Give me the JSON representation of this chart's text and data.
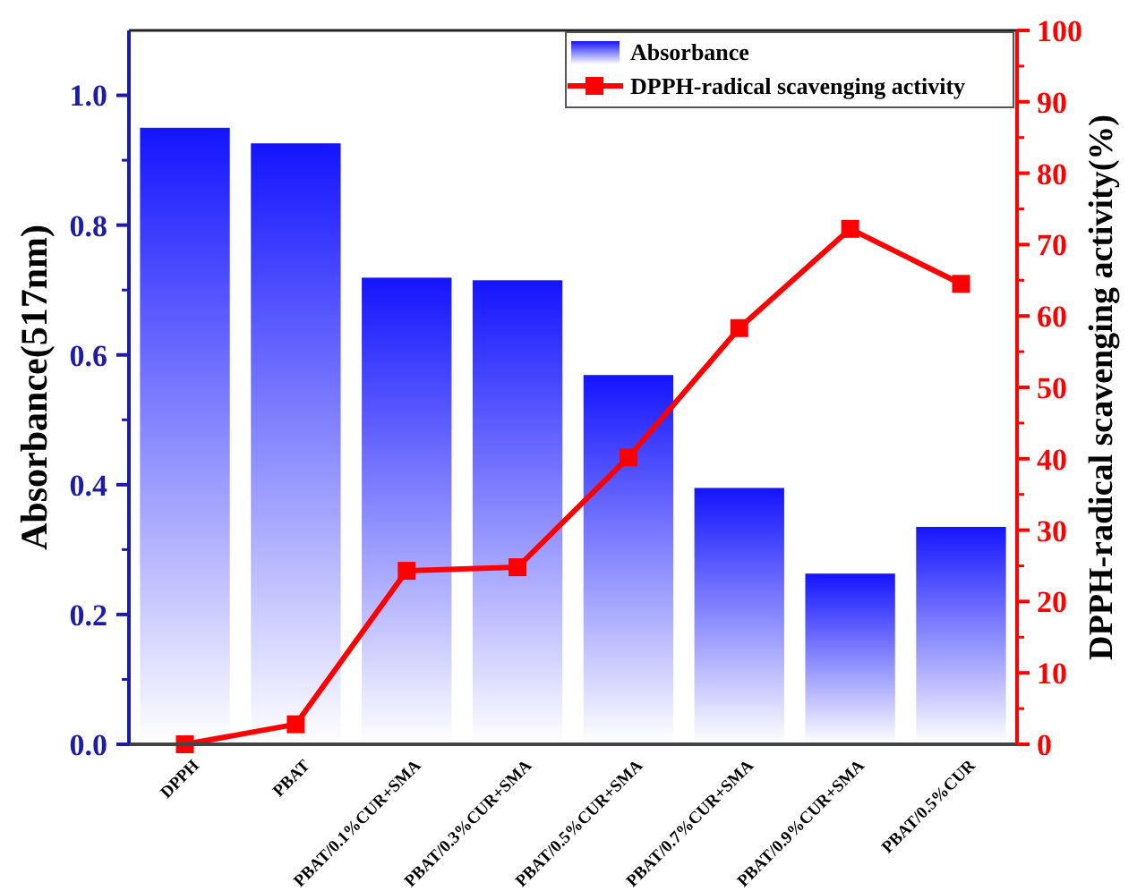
{
  "chart_data": {
    "type": "bar",
    "xlabel": null,
    "ylabel": "Absorbance(517nm)",
    "y2label": "DPPH-radical scavenging activity(%)",
    "categories": [
      "DPPH",
      "PBAT",
      "PBAT/0.1%CUR+SMA",
      "PBAT/0.3%CUR+SMA",
      "PBAT/0.5%CUR+SMA",
      "PBAT/0.7%CUR+SMA",
      "PBAT/0.9%CUR+SMA",
      "PBAT/0.5%CUR"
    ],
    "series": [
      {
        "name": "Absorbance",
        "color": "#1414ff",
        "values": [
          0.95,
          0.926,
          0.719,
          0.715,
          0.569,
          0.395,
          0.263,
          0.335
        ]
      },
      {
        "name": "DPPH-radical scavenging activity",
        "type": "line",
        "axis": "y2",
        "color": "#ff0000",
        "marker": "square",
        "values": [
          0,
          2.8,
          24.3,
          24.8,
          40.2,
          58.3,
          72.2,
          64.5
        ]
      }
    ],
    "ylim": [
      0,
      1.1
    ],
    "yticks": [
      {
        "value": 0,
        "label": "0.0"
      },
      0.2,
      0.4,
      0.6,
      0.8,
      {
        "value": 1,
        "label": "1.0"
      }
    ],
    "y2lim": [
      0,
      100
    ],
    "y2ticks": [
      0,
      10,
      20,
      30,
      40,
      50,
      60,
      70,
      80,
      90,
      100
    ],
    "grid": false,
    "legend": "top right"
  }
}
